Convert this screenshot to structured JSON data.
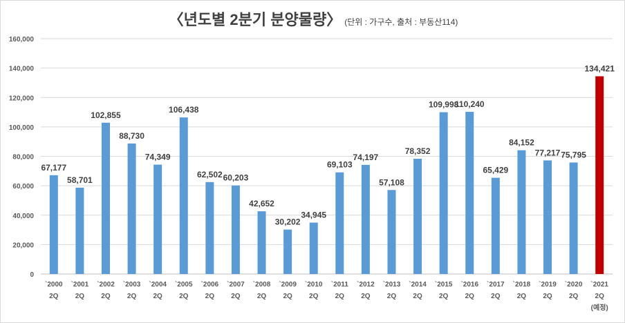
{
  "chart_data": {
    "type": "bar",
    "title": "〈년도별 2분기 분양물량〉",
    "subtitle": "(단위 : 가구수, 출처 : 부동산114)",
    "categories": [
      [
        "`2000",
        "2Q"
      ],
      [
        "`2001",
        "2Q"
      ],
      [
        "`2002",
        "2Q"
      ],
      [
        "`2003",
        "2Q"
      ],
      [
        "`2004",
        "2Q"
      ],
      [
        "`2005",
        "2Q"
      ],
      [
        "`2006",
        "2Q"
      ],
      [
        "`2007",
        "2Q"
      ],
      [
        "`2008",
        "2Q"
      ],
      [
        "`2009",
        "2Q"
      ],
      [
        "`2010",
        "2Q"
      ],
      [
        "`2011",
        "2Q"
      ],
      [
        "`2012",
        "2Q"
      ],
      [
        "`2013",
        "2Q"
      ],
      [
        "`2014",
        "2Q"
      ],
      [
        "`2015",
        "2Q"
      ],
      [
        "`2016",
        "2Q"
      ],
      [
        "`2017",
        "2Q"
      ],
      [
        "`2018",
        "2Q"
      ],
      [
        "`2019",
        "2Q"
      ],
      [
        "`2020",
        "2Q"
      ],
      [
        "`2021",
        "2Q",
        "(예정)"
      ]
    ],
    "values": [
      67177,
      58701,
      102855,
      88730,
      74349,
      106438,
      62502,
      60203,
      42652,
      30202,
      34945,
      69103,
      74197,
      57108,
      78352,
      109998,
      110240,
      65429,
      84152,
      77217,
      75795,
      134421
    ],
    "data_labels": [
      "67,177",
      "58,701",
      "102,855",
      "88,730",
      "74,349",
      "106,438",
      "62,502",
      "60,203",
      "42,652",
      "30,202",
      "34,945",
      "69,103",
      "74,197",
      "57,108",
      "78,352",
      "109,998",
      "110,240",
      "65,429",
      "84,152",
      "77,217",
      "75,795",
      "134,421"
    ],
    "ylim": [
      0,
      160000
    ],
    "yticks": [
      "0",
      "20,000",
      "40,000",
      "60,000",
      "80,000",
      "100,000",
      "120,000",
      "140,000",
      "160,000"
    ],
    "grid": true,
    "colors": {
      "bar": "#5b9bd5",
      "highlight": "#c00000",
      "grid": "#d9d9d9"
    },
    "highlight_index": 21
  }
}
